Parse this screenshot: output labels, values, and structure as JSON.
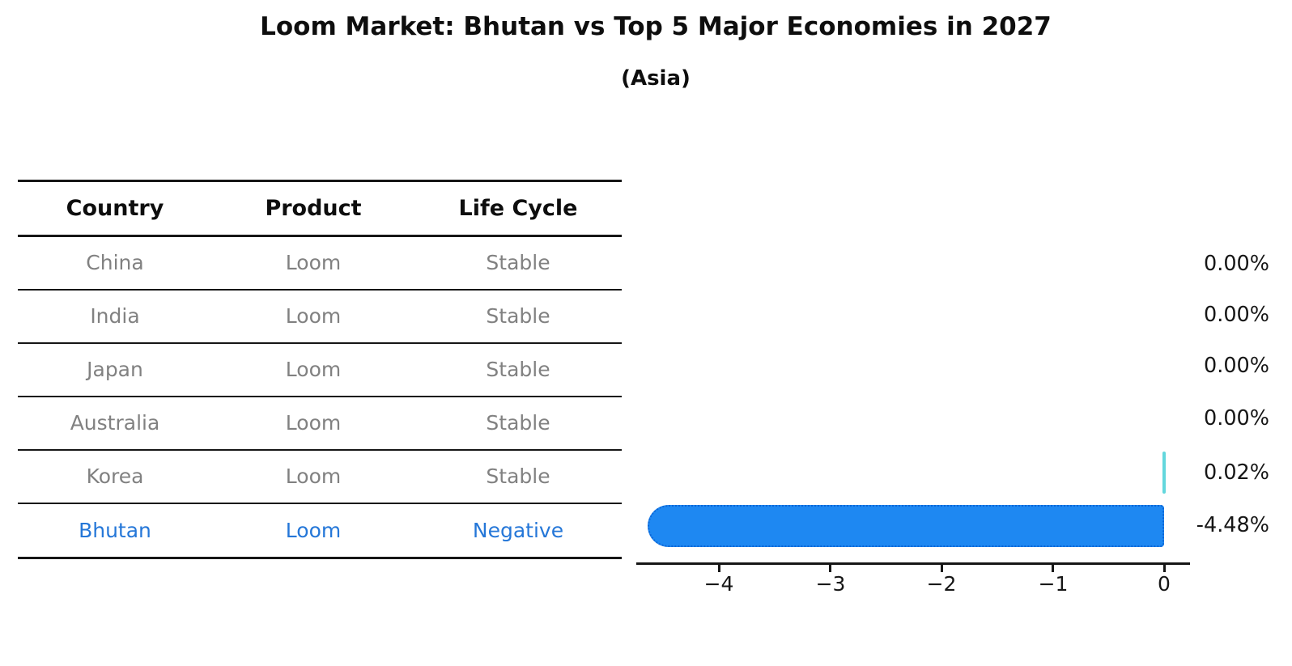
{
  "header": {
    "title": "Loom Market: Bhutan vs Top 5 Major Economies in 2027",
    "subtitle": "(Asia)"
  },
  "table": {
    "headers": [
      "Country",
      "Product",
      "Life Cycle"
    ],
    "rows": [
      {
        "country": "China",
        "product": "Loom",
        "life_cycle": "Stable",
        "highlight": false
      },
      {
        "country": "India",
        "product": "Loom",
        "life_cycle": "Stable",
        "highlight": false
      },
      {
        "country": "Japan",
        "product": "Loom",
        "life_cycle": "Stable",
        "highlight": false
      },
      {
        "country": "Australia",
        "product": "Loom",
        "life_cycle": "Stable",
        "highlight": false
      },
      {
        "country": "Korea",
        "product": "Loom",
        "life_cycle": "Stable",
        "highlight": false
      },
      {
        "country": "Bhutan",
        "product": "Loom",
        "life_cycle": "Negative",
        "highlight": true
      }
    ]
  },
  "chart_data": {
    "type": "bar",
    "orientation": "horizontal",
    "title": "Loom Market: Bhutan vs Top 5 Major Economies in 2027",
    "subtitle": "(Asia)",
    "categories": [
      "China",
      "India",
      "Japan",
      "Australia",
      "Korea",
      "Bhutan"
    ],
    "values": [
      0.0,
      0.0,
      0.0,
      0.0,
      0.02,
      -4.48
    ],
    "value_labels": [
      "0.00%",
      "0.00%",
      "0.00%",
      "0.00%",
      "0.02%",
      "-4.48%"
    ],
    "xticks": [
      "−4",
      "−3",
      "−2",
      "−1",
      "0"
    ],
    "xtick_values": [
      -4,
      -3,
      -2,
      -1,
      0
    ],
    "xlim": [
      -4.75,
      0.25
    ],
    "grid": false,
    "legend": "none",
    "colors": {
      "negative_bar": "#1e88f2",
      "negative_bar_edge": "#0c66d6",
      "positive_bar": "#63d7dd",
      "highlight_text": "#2577d8",
      "muted_text": "#818181",
      "axis_text": "#161616"
    }
  }
}
